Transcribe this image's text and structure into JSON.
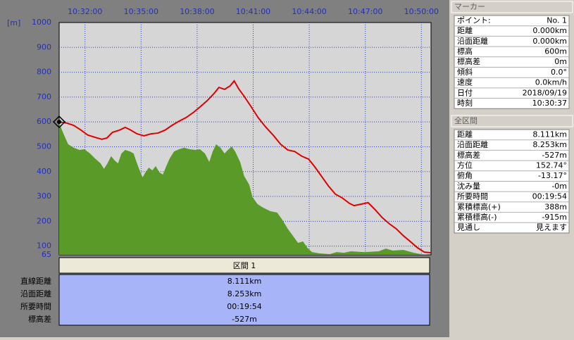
{
  "chart_data": {
    "type": "area-line",
    "y_label": "[m]",
    "xlim": [
      37837,
      39031
    ],
    "ylim": [
      65,
      1000
    ],
    "xticks": [
      {
        "value": 37920,
        "label": "10:32:00"
      },
      {
        "value": 38100,
        "label": "10:35:00"
      },
      {
        "value": 38280,
        "label": "10:38:00"
      },
      {
        "value": 38460,
        "label": "10:41:00"
      },
      {
        "value": 38640,
        "label": "10:44:00"
      },
      {
        "value": 38820,
        "label": "10:47:00"
      },
      {
        "value": 39000,
        "label": "10:50:00"
      }
    ],
    "yticks": [
      65,
      100,
      200,
      300,
      400,
      500,
      600,
      700,
      800,
      900,
      1000
    ],
    "grid": true,
    "series": [
      {
        "kind": "line",
        "color": "#e00000",
        "x": [
          37837,
          37862,
          37884,
          37907,
          37929,
          37952,
          37974,
          37990,
          38008,
          38031,
          38049,
          38064,
          38087,
          38109,
          38132,
          38154,
          38177,
          38199,
          38222,
          38244,
          38267,
          38289,
          38312,
          38334,
          38350,
          38368,
          38386,
          38399,
          38413,
          38431,
          38454,
          38476,
          38499,
          38526,
          38548,
          38571,
          38593,
          38616,
          38638,
          38656,
          38679,
          38701,
          38724,
          38746,
          38769,
          38784,
          38807,
          38829,
          38852,
          38874,
          38897,
          38919,
          38942,
          38964,
          38987,
          39009,
          39031
        ],
        "values": [
          600,
          595,
          586,
          567,
          547,
          538,
          530,
          535,
          558,
          567,
          578,
          569,
          552,
          544,
          552,
          555,
          567,
          586,
          603,
          617,
          637,
          660,
          685,
          714,
          739,
          731,
          745,
          765,
          734,
          703,
          660,
          617,
          581,
          544,
          510,
          487,
          481,
          462,
          450,
          422,
          382,
          343,
          309,
          294,
          272,
          263,
          269,
          275,
          246,
          215,
          190,
          170,
          142,
          119,
          94,
          76,
          73
        ]
      },
      {
        "kind": "area",
        "color": "#5a9a28",
        "x": [
          37837,
          37851,
          37866,
          37884,
          37902,
          37918,
          37936,
          37952,
          37970,
          37981,
          37992,
          38004,
          38015,
          38026,
          38037,
          38049,
          38064,
          38076,
          38087,
          38098,
          38105,
          38114,
          38125,
          38136,
          38147,
          38159,
          38170,
          38181,
          38192,
          38206,
          38222,
          38238,
          38256,
          38274,
          38289,
          38305,
          38319,
          38330,
          38341,
          38355,
          38368,
          38379,
          38391,
          38402,
          38418,
          38431,
          38447,
          38458,
          38474,
          38492,
          38514,
          38537,
          38553,
          38571,
          38589,
          38604,
          38620,
          38634,
          38649,
          38672,
          38706,
          38728,
          38751,
          38773,
          38818,
          38863,
          38886,
          38908,
          38942,
          38976,
          38998,
          39025
        ],
        "values": [
          595,
          552,
          510,
          496,
          487,
          490,
          473,
          453,
          433,
          411,
          433,
          462,
          445,
          433,
          473,
          487,
          481,
          473,
          433,
          397,
          377,
          397,
          416,
          405,
          422,
          397,
          388,
          422,
          453,
          481,
          490,
          496,
          490,
          487,
          490,
          473,
          439,
          481,
          510,
          496,
          473,
          487,
          501,
          481,
          439,
          382,
          348,
          297,
          269,
          255,
          241,
          235,
          207,
          170,
          139,
          113,
          119,
          93,
          76,
          71,
          68,
          76,
          73,
          79,
          76,
          79,
          90,
          82,
          85,
          73,
          68,
          65
        ]
      }
    ]
  },
  "summary_table": {
    "header": "区間 1",
    "rows": [
      [
        "直線距離",
        "8.111km"
      ],
      [
        "沿面距離",
        "8.253km"
      ],
      [
        "所要時間",
        "00:19:54"
      ],
      [
        "標高差",
        "-527m"
      ]
    ]
  },
  "marker_panel": {
    "title": "マーカー",
    "rows": [
      [
        "ポイント:",
        "No. 1"
      ],
      [
        "距離",
        "0.000km"
      ],
      [
        "沿面距離",
        "0.000km"
      ],
      [
        "標高",
        "600m"
      ],
      [
        "標高差",
        "0m"
      ],
      [
        "傾斜",
        "0.0°"
      ],
      [
        "速度",
        "0.0km/h"
      ],
      [
        "日付",
        "2018/09/19"
      ],
      [
        "時刻",
        "10:30:37"
      ]
    ]
  },
  "total_panel": {
    "title": "全区間",
    "rows": [
      [
        "距離",
        "8.111km"
      ],
      [
        "沿面距離",
        "8.253km"
      ],
      [
        "標高差",
        "-527m"
      ],
      [
        "方位",
        "152.74°"
      ],
      [
        "俯角",
        "-13.17°"
      ],
      [
        "沈み量",
        "-0m"
      ],
      [
        "所要時間",
        "00:19:54"
      ],
      [
        "累積標高(+)",
        "388m"
      ],
      [
        "累積標高(-)",
        "-915m"
      ],
      [
        "見通し",
        "見えます"
      ]
    ]
  }
}
